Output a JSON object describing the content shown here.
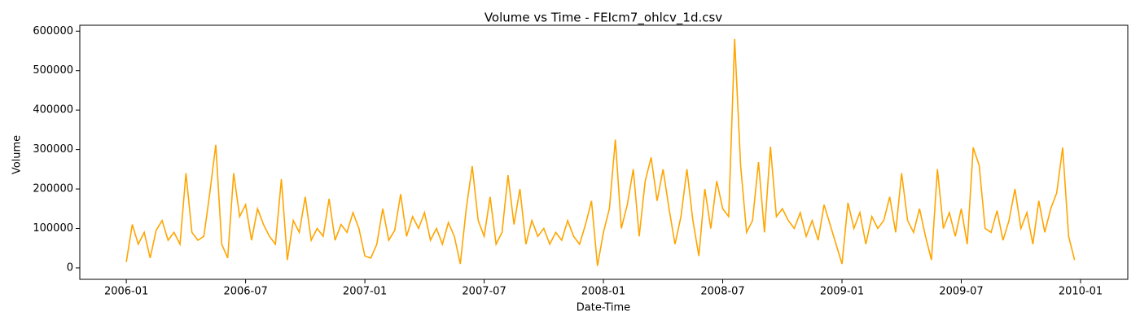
{
  "chart_data": {
    "type": "line",
    "title": "Volume vs Time - FEIcm7_ohlcv_1d.csv",
    "xlabel": "Date-Time",
    "ylabel": "Volume",
    "xlim": [
      2005.805,
      2010.198
    ],
    "ylim": [
      -29000,
      615000
    ],
    "xticks": [
      {
        "value": 2006.0,
        "label": "2006-01"
      },
      {
        "value": 2006.5,
        "label": "2006-07"
      },
      {
        "value": 2007.0,
        "label": "2007-01"
      },
      {
        "value": 2007.5,
        "label": "2007-07"
      },
      {
        "value": 2008.0,
        "label": "2008-01"
      },
      {
        "value": 2008.5,
        "label": "2008-07"
      },
      {
        "value": 2009.0,
        "label": "2009-01"
      },
      {
        "value": 2009.5,
        "label": "2009-07"
      },
      {
        "value": 2010.0,
        "label": "2010-01"
      }
    ],
    "yticks": [
      0,
      100000,
      200000,
      300000,
      400000,
      500000,
      600000
    ],
    "grid": false,
    "series": [
      {
        "name": "Volume",
        "color": "#ffa500",
        "x": [
          2006.0,
          2006.025,
          2006.05,
          2006.075,
          2006.1,
          2006.125,
          2006.15,
          2006.175,
          2006.2,
          2006.225,
          2006.25,
          2006.275,
          2006.3,
          2006.325,
          2006.35,
          2006.375,
          2006.4,
          2006.425,
          2006.45,
          2006.475,
          2006.5,
          2006.525,
          2006.55,
          2006.575,
          2006.6,
          2006.625,
          2006.65,
          2006.675,
          2006.7,
          2006.725,
          2006.75,
          2006.775,
          2006.8,
          2006.825,
          2006.85,
          2006.875,
          2006.9,
          2006.925,
          2006.95,
          2006.975,
          2007.0,
          2007.025,
          2007.05,
          2007.075,
          2007.1,
          2007.125,
          2007.15,
          2007.175,
          2007.2,
          2007.225,
          2007.25,
          2007.275,
          2007.3,
          2007.325,
          2007.35,
          2007.375,
          2007.4,
          2007.425,
          2007.45,
          2007.475,
          2007.5,
          2007.525,
          2007.55,
          2007.575,
          2007.6,
          2007.625,
          2007.65,
          2007.675,
          2007.7,
          2007.725,
          2007.75,
          2007.775,
          2007.8,
          2007.825,
          2007.85,
          2007.875,
          2007.9,
          2007.925,
          2007.95,
          2007.975,
          2008.0,
          2008.025,
          2008.05,
          2008.075,
          2008.1,
          2008.125,
          2008.15,
          2008.175,
          2008.2,
          2008.225,
          2008.25,
          2008.275,
          2008.3,
          2008.325,
          2008.35,
          2008.375,
          2008.4,
          2008.425,
          2008.45,
          2008.475,
          2008.5,
          2008.525,
          2008.55,
          2008.575,
          2008.6,
          2008.625,
          2008.65,
          2008.675,
          2008.7,
          2008.725,
          2008.75,
          2008.775,
          2008.8,
          2008.825,
          2008.85,
          2008.875,
          2008.9,
          2008.925,
          2008.95,
          2008.975,
          2009.0,
          2009.025,
          2009.05,
          2009.075,
          2009.1,
          2009.125,
          2009.15,
          2009.175,
          2009.2,
          2009.225,
          2009.25,
          2009.275,
          2009.3,
          2009.325,
          2009.35,
          2009.375,
          2009.4,
          2009.425,
          2009.45,
          2009.475,
          2009.5,
          2009.525,
          2009.55,
          2009.575,
          2009.6,
          2009.625,
          2009.65,
          2009.675,
          2009.7,
          2009.725,
          2009.75,
          2009.775,
          2009.8,
          2009.825,
          2009.85,
          2009.875,
          2009.9,
          2009.925,
          2009.95,
          2009.975
        ],
        "values": [
          15000,
          110000,
          60000,
          90000,
          25000,
          95000,
          120000,
          70000,
          90000,
          60000,
          240000,
          90000,
          70000,
          80000,
          190000,
          312000,
          60000,
          25000,
          240000,
          130000,
          160000,
          70000,
          150000,
          110000,
          80000,
          60000,
          225000,
          20000,
          120000,
          90000,
          180000,
          70000,
          100000,
          80000,
          175000,
          70000,
          110000,
          90000,
          140000,
          100000,
          30000,
          25000,
          60000,
          150000,
          70000,
          95000,
          187000,
          80000,
          130000,
          100000,
          140000,
          70000,
          100000,
          60000,
          115000,
          80000,
          10000,
          150000,
          258000,
          120000,
          80000,
          180000,
          60000,
          90000,
          235000,
          110000,
          200000,
          60000,
          120000,
          80000,
          100000,
          60000,
          90000,
          70000,
          120000,
          80000,
          60000,
          110000,
          170000,
          5000,
          90000,
          150000,
          325000,
          100000,
          160000,
          250000,
          80000,
          220000,
          280000,
          170000,
          250000,
          150000,
          60000,
          130000,
          250000,
          120000,
          30000,
          200000,
          100000,
          220000,
          150000,
          130000,
          580000,
          260000,
          90000,
          120000,
          268000,
          90000,
          307000,
          130000,
          150000,
          120000,
          100000,
          140000,
          80000,
          120000,
          70000,
          160000,
          110000,
          60000,
          10000,
          165000,
          100000,
          140000,
          60000,
          130000,
          100000,
          120000,
          180000,
          90000,
          240000,
          120000,
          90000,
          150000,
          80000,
          20000,
          250000,
          100000,
          140000,
          80000,
          150000,
          60000,
          305000,
          260000,
          100000,
          90000,
          145000,
          70000,
          120000,
          200000,
          100000,
          140000,
          60000,
          170000,
          90000,
          150000,
          190000,
          305000,
          80000,
          20000
        ]
      }
    ]
  }
}
